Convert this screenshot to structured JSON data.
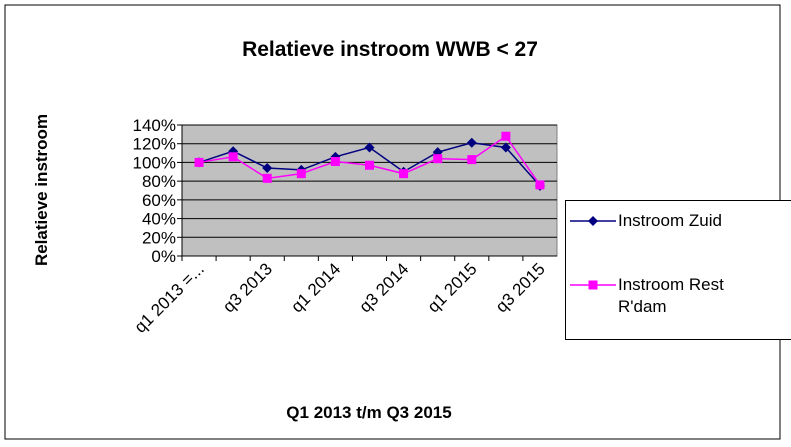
{
  "chart_data": {
    "type": "line",
    "title": "Relatieve instroom WWB < 27",
    "y_label": "Relatieve instroom",
    "x_label": "Q1 2013 t/m Q3 2015",
    "categories": [
      "q1 2013 =...",
      null,
      "q3 2013",
      null,
      "q1 2014",
      null,
      "q3 2014",
      null,
      "q1 2015",
      null,
      "q3 2015"
    ],
    "series": [
      {
        "name": "Instroom Zuid",
        "color": "#000080",
        "marker": "diamond",
        "values": [
          100,
          112,
          94,
          92,
          106,
          116,
          90,
          111,
          121,
          116,
          75
        ]
      },
      {
        "name": "Instroom Rest R'dam",
        "color": "#ff00ff",
        "marker": "square",
        "values": [
          100,
          106,
          83,
          88,
          101,
          97,
          88,
          104,
          103,
          128,
          76
        ]
      }
    ],
    "ylim": [
      0,
      140
    ],
    "yticks": [
      {
        "value": 0,
        "label": "0%"
      },
      {
        "value": 20,
        "label": "20%"
      },
      {
        "value": 40,
        "label": "40%"
      },
      {
        "value": 60,
        "label": "60%"
      },
      {
        "value": 80,
        "label": "80%"
      },
      {
        "value": 100,
        "label": "100%"
      },
      {
        "value": 120,
        "label": "120%"
      },
      {
        "value": 140,
        "label": "140%"
      }
    ],
    "grid": true
  }
}
